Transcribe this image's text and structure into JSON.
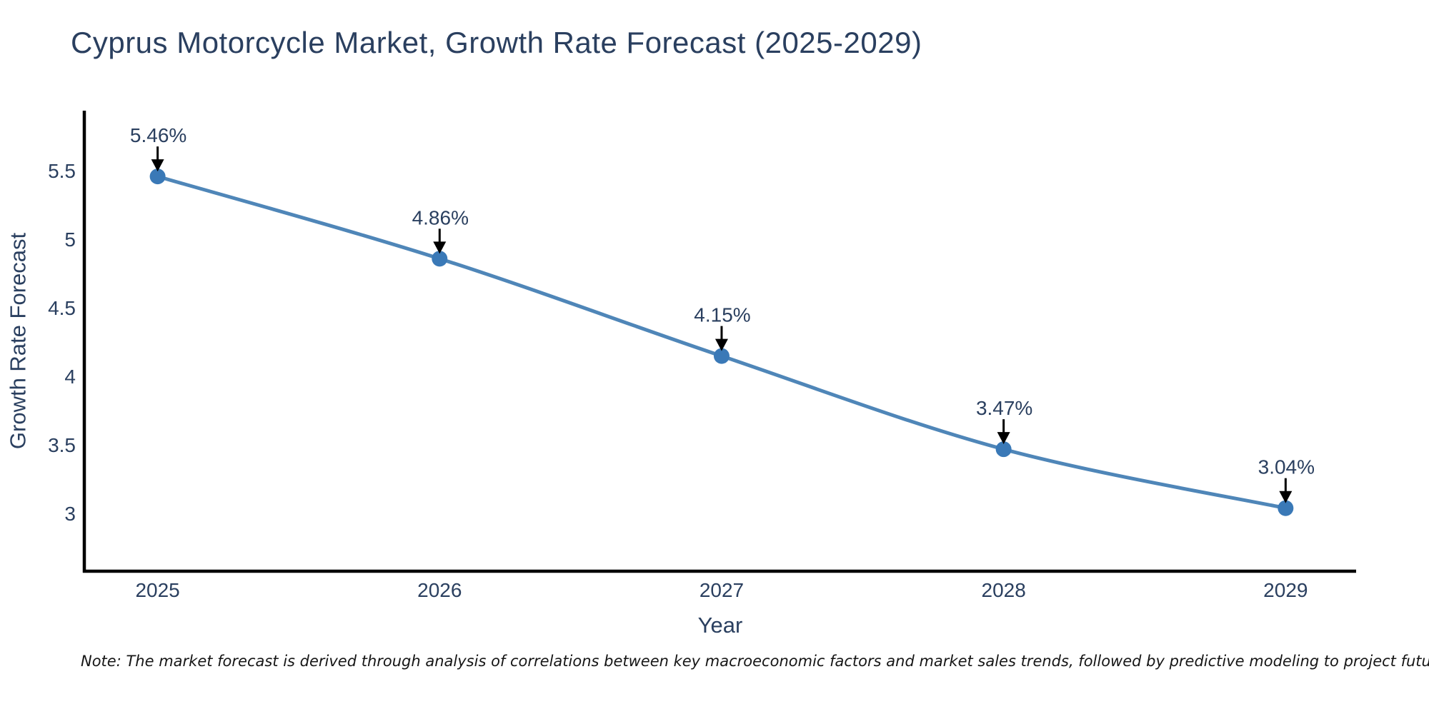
{
  "title": "Cyprus Motorcycle Market, Growth Rate Forecast (2025-2029)",
  "note": "Note: The market forecast is derived through analysis of correlations between key macroeconomic factors and market sales trends, followed by predictive modeling to project future sales",
  "chart_data": {
    "type": "line",
    "x": [
      2025,
      2026,
      2027,
      2028,
      2029
    ],
    "x_tick_labels": [
      "2025",
      "2026",
      "2027",
      "2028",
      "2029"
    ],
    "series": [
      {
        "name": "Growth Rate Forecast",
        "values": [
          5.46,
          4.86,
          4.15,
          3.47,
          3.04
        ]
      }
    ],
    "point_labels": [
      "5.46%",
      "4.86%",
      "4.15%",
      "3.47%",
      "3.04%"
    ],
    "title": "Cyprus Motorcycle Market, Growth Rate Forecast (2025-2029)",
    "xlabel": "Year",
    "ylabel": "Growth Rate Forecast",
    "y_ticks": [
      3,
      3.5,
      4,
      4.5,
      5,
      5.5
    ],
    "xlim": [
      2024.74,
      2029.25
    ],
    "ylim": [
      2.58,
      5.94
    ],
    "grid": false,
    "legend": "none",
    "line_shape": "spline",
    "marker_size": 11,
    "colors": {
      "line": "#4f86b8",
      "marker": "#3a79b7",
      "arrow": "#000000",
      "axis_line": "#000000",
      "chart_text": "#2a3f5f",
      "note_text": "#161616",
      "background": "#ffffff"
    }
  }
}
